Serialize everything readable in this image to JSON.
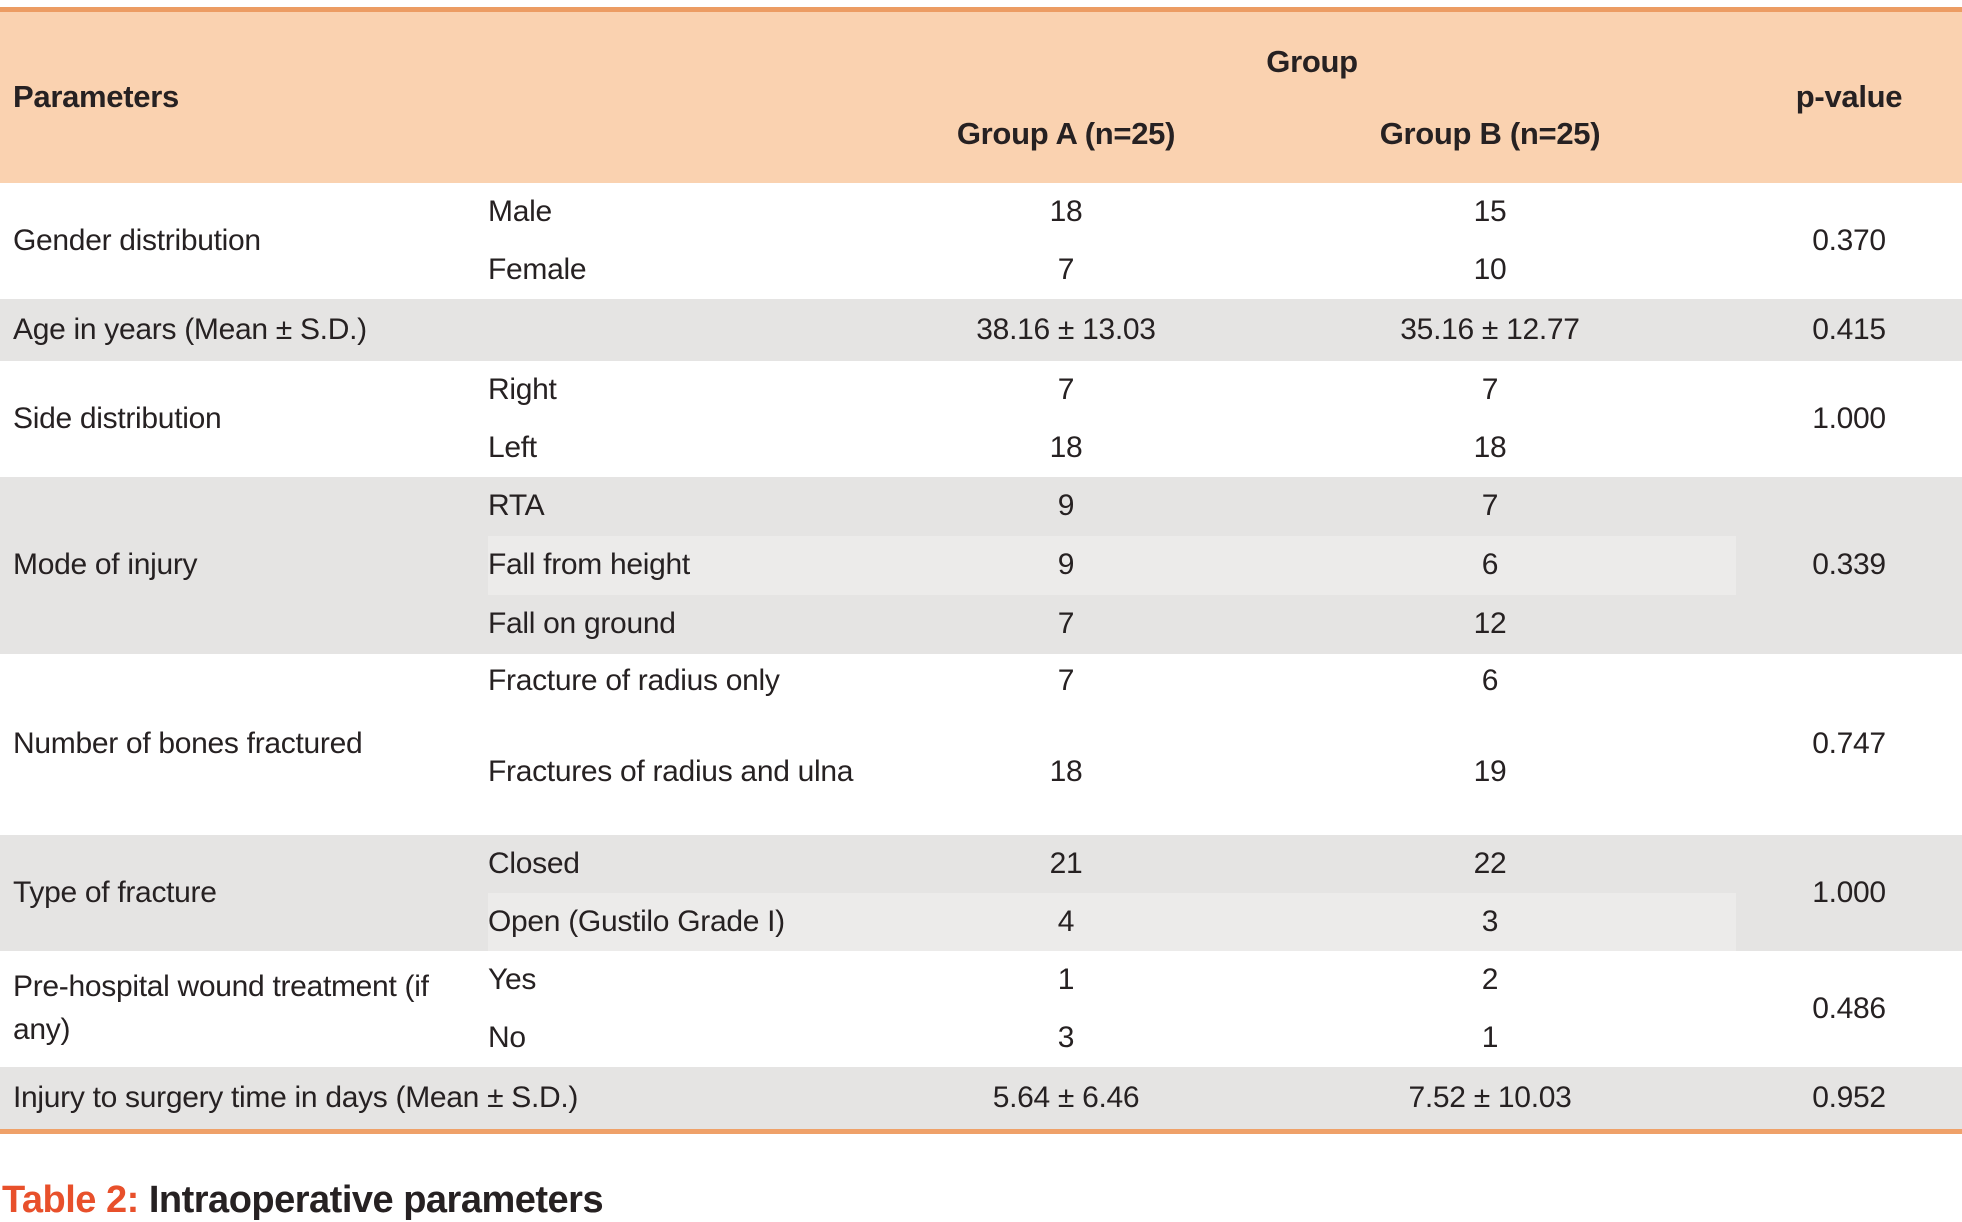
{
  "header": {
    "parameters": "Parameters",
    "group": "Group",
    "group_a": "Group A (n=25)",
    "group_b": "Group B (n=25)",
    "p_value": "p-value"
  },
  "colors": {
    "header_bg": "#FAD2B0",
    "rule_orange": "#EC9C63",
    "row_gray": "#E5E4E3",
    "row_gray_light": "#ECEBEA",
    "text": "#262122",
    "caption_accent": "#E8502B"
  },
  "groups": [
    {
      "label": "Gender distribution",
      "shaded": false,
      "p": "0.370",
      "rows": [
        {
          "sub": "Male",
          "a": "18",
          "b": "15"
        },
        {
          "sub": "Female",
          "a": "7",
          "b": "10"
        }
      ]
    },
    {
      "label": "Age in years (Mean ± S.D.)",
      "shaded": true,
      "p": "0.415",
      "rows": [
        {
          "sub": "",
          "a": "38.16 ± 13.03",
          "b": "35.16 ± 12.77"
        }
      ]
    },
    {
      "label": "Side distribution",
      "shaded": false,
      "p": "1.000",
      "rows": [
        {
          "sub": "Right",
          "a": "7",
          "b": "7"
        },
        {
          "sub": "Left",
          "a": "18",
          "b": "18"
        }
      ]
    },
    {
      "label": "Mode of injury",
      "shaded": true,
      "p": "0.339",
      "rows": [
        {
          "sub": "RTA",
          "a": "9",
          "b": "7"
        },
        {
          "sub": "Fall from height",
          "a": "9",
          "b": "6"
        },
        {
          "sub": "Fall on ground",
          "a": "7",
          "b": "12"
        }
      ]
    },
    {
      "label": "Number of bones fractured",
      "shaded": false,
      "p": "0.747",
      "rows": [
        {
          "sub": "Fracture of radius only",
          "a": "7",
          "b": "6"
        },
        {
          "sub": "Fractures of radius and ulna",
          "a": "18",
          "b": "19"
        }
      ]
    },
    {
      "label": "Type of fracture",
      "shaded": true,
      "p": "1.000",
      "rows": [
        {
          "sub": "Closed",
          "a": "21",
          "b": "22"
        },
        {
          "sub": "Open (Gustilo Grade I)",
          "a": "4",
          "b": "3"
        }
      ]
    },
    {
      "label": "Pre-hospital wound treatment (if any)",
      "shaded": false,
      "p": "0.486",
      "rows": [
        {
          "sub": "Yes",
          "a": "1",
          "b": "2"
        },
        {
          "sub": "No",
          "a": "3",
          "b": "1"
        }
      ]
    },
    {
      "label": "Injury to surgery time in days (Mean ± S.D.)",
      "shaded": true,
      "p": "0.952",
      "rows": [
        {
          "sub": "",
          "a": "5.64 ± 6.46",
          "b": "7.52 ± 10.03"
        }
      ]
    }
  ],
  "caption": {
    "prefix": "Table 2:",
    "text": "Intraoperative parameters"
  }
}
